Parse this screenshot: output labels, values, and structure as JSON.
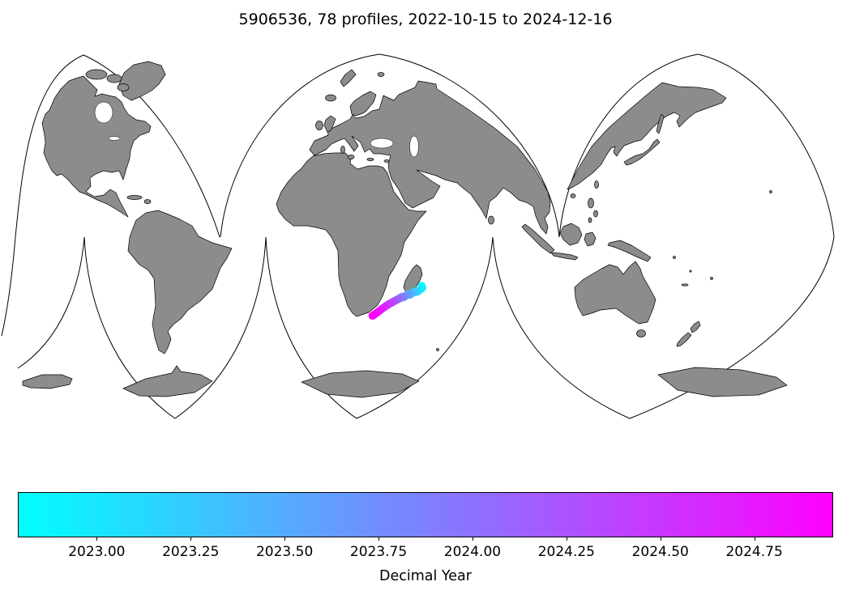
{
  "figure": {
    "title": "5906536, 78 profiles, 2022-10-15 to 2024-12-16",
    "float_id": "5906536",
    "profiles_count": 78,
    "date_start": "2022-10-15",
    "date_end": "2024-12-16"
  },
  "map": {
    "projection_name": "interrupted-goode-homolosine",
    "land_color": "#8c8c8c",
    "outline_color": "#000000",
    "ocean_color": "#ffffff"
  },
  "chart_data": {
    "type": "scatter",
    "title": "5906536, 78 profiles, 2022-10-15 to 2024-12-16",
    "legend_position": "none",
    "colorbar": {
      "label": "Decimal Year",
      "orientation": "horizontal",
      "cmap": "cool",
      "color_start": "#00ffff",
      "color_end": "#ff00ff",
      "vmin": 2022.79,
      "vmax": 2024.96,
      "ticks": [
        {
          "value": 2023.0,
          "label": "2023.00"
        },
        {
          "value": 2023.25,
          "label": "2023.25"
        },
        {
          "value": 2023.5,
          "label": "2023.50"
        },
        {
          "value": 2023.75,
          "label": "2023.75"
        },
        {
          "value": 2024.0,
          "label": "2024.00"
        },
        {
          "value": 2024.25,
          "label": "2024.25"
        },
        {
          "value": 2024.5,
          "label": "2024.50"
        },
        {
          "value": 2024.75,
          "label": "2024.75"
        }
      ]
    },
    "points": [
      {
        "lon": 50.8,
        "lat": -21.5,
        "year": 2022.79
      },
      {
        "lon": 51.2,
        "lat": -22.3,
        "year": 2022.87
      },
      {
        "lon": 50.6,
        "lat": -23.0,
        "year": 2022.95
      },
      {
        "lon": 49.8,
        "lat": -23.6,
        "year": 2023.04
      },
      {
        "lon": 49.0,
        "lat": -24.1,
        "year": 2023.12
      },
      {
        "lon": 48.2,
        "lat": -23.8,
        "year": 2023.2
      },
      {
        "lon": 47.4,
        "lat": -24.4,
        "year": 2023.28
      },
      {
        "lon": 46.6,
        "lat": -24.9,
        "year": 2023.37
      },
      {
        "lon": 45.8,
        "lat": -25.4,
        "year": 2023.45
      },
      {
        "lon": 45.0,
        "lat": -25.1,
        "year": 2023.53
      },
      {
        "lon": 44.3,
        "lat": -25.6,
        "year": 2023.61
      },
      {
        "lon": 43.6,
        "lat": -26.1,
        "year": 2023.7
      },
      {
        "lon": 42.9,
        "lat": -26.5,
        "year": 2023.78
      },
      {
        "lon": 42.2,
        "lat": -26.3,
        "year": 2023.86
      },
      {
        "lon": 41.5,
        "lat": -26.8,
        "year": 2023.94
      },
      {
        "lon": 40.8,
        "lat": -27.2,
        "year": 2024.03
      },
      {
        "lon": 40.0,
        "lat": -27.6,
        "year": 2024.11
      },
      {
        "lon": 39.2,
        "lat": -28.0,
        "year": 2024.19
      },
      {
        "lon": 38.4,
        "lat": -28.4,
        "year": 2024.27
      },
      {
        "lon": 37.5,
        "lat": -28.9,
        "year": 2024.36
      },
      {
        "lon": 36.5,
        "lat": -29.4,
        "year": 2024.44
      },
      {
        "lon": 35.5,
        "lat": -30.0,
        "year": 2024.52
      },
      {
        "lon": 34.4,
        "lat": -30.7,
        "year": 2024.6
      },
      {
        "lon": 33.2,
        "lat": -31.5,
        "year": 2024.69
      },
      {
        "lon": 32.0,
        "lat": -32.4,
        "year": 2024.77
      },
      {
        "lon": 30.7,
        "lat": -33.3,
        "year": 2024.85
      },
      {
        "lon": 29.4,
        "lat": -34.1,
        "year": 2024.93
      },
      {
        "lon": 28.5,
        "lat": -34.6,
        "year": 2024.96
      }
    ]
  }
}
